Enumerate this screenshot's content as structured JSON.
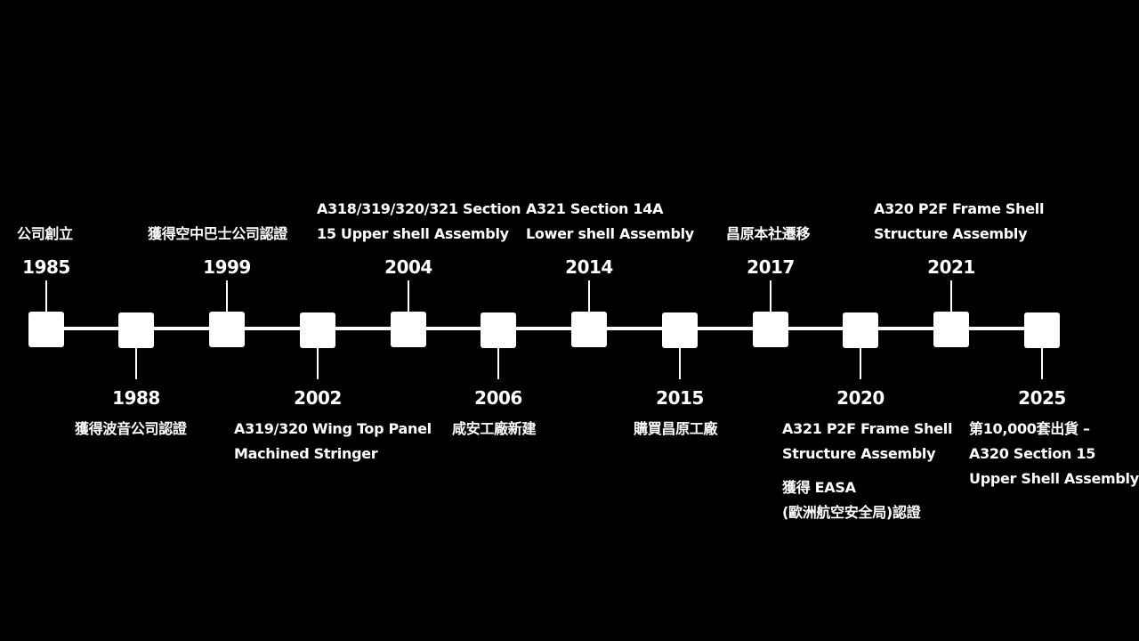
{
  "events": [
    {
      "year": "1985",
      "position": "top",
      "lines": [
        "公司創立"
      ]
    },
    {
      "year": "1988",
      "position": "bottom",
      "lines": [
        "獲得波音公司認證"
      ]
    },
    {
      "year": "1999",
      "position": "top",
      "lines": [
        "獲得空中巴士公司認證"
      ]
    },
    {
      "year": "2002",
      "position": "bottom",
      "lines": [
        "A319/320 Wing Top Panel",
        "Machined Stringer"
      ]
    },
    {
      "year": "2004",
      "position": "top",
      "lines": [
        "A318/319/320/321 Section",
        "15 Upper shell Assembly"
      ]
    },
    {
      "year": "2006",
      "position": "bottom",
      "lines": [
        "咸安工廠新建"
      ]
    },
    {
      "year": "2014",
      "position": "top",
      "lines": [
        "A321 Section 14A",
        "Lower shell Assembly"
      ]
    },
    {
      "year": "2015",
      "position": "bottom",
      "lines": [
        "購買昌原工廠"
      ]
    },
    {
      "year": "2017",
      "position": "top",
      "lines": [
        "昌原本社遷移"
      ]
    },
    {
      "year": "2020",
      "position": "bottom",
      "lines": [
        "A321 P2F Frame Shell",
        "Structure Assembly"
      ],
      "extra_lines": [
        "獲得 EASA",
        "(歐洲航空安全局)認證"
      ]
    },
    {
      "year": "2021",
      "position": "top",
      "lines": [
        "A320 P2F Frame Shell",
        "Structure Assembly"
      ]
    },
    {
      "year": "2025",
      "position": "bottom",
      "lines": [
        "第10,000套出貨 –",
        "A320 Section 15",
        "Upper Shell Assembly"
      ]
    }
  ],
  "colors": {
    "background": "#000000",
    "foreground": "#ffffff"
  }
}
